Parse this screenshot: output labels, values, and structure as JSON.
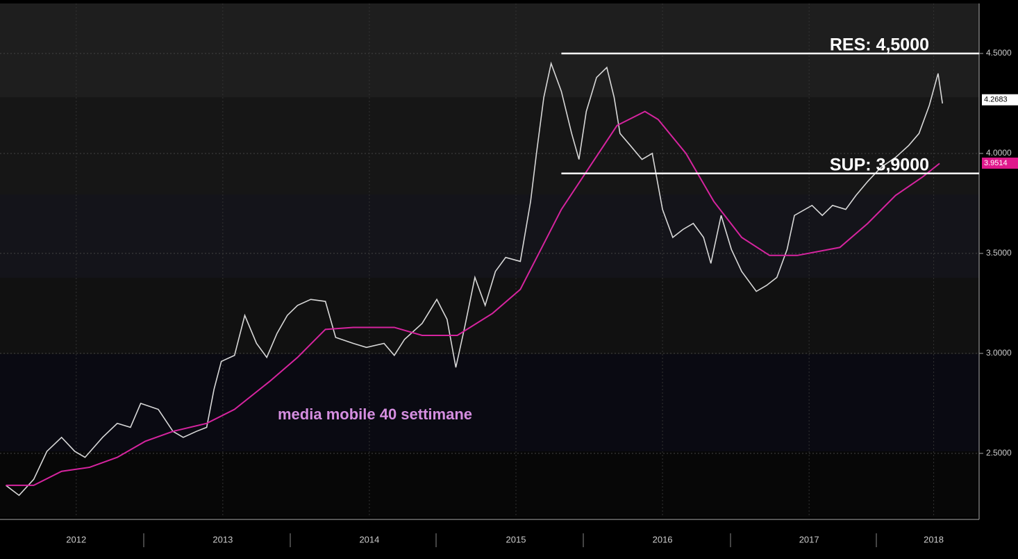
{
  "chart_data": {
    "type": "line",
    "xlim": [
      2011.98,
      2018.66
    ],
    "ylim": [
      2.18,
      4.75
    ],
    "yticks": [
      {
        "value": 2.5,
        "label": "2.5000"
      },
      {
        "value": 3.0,
        "label": "3.0000"
      },
      {
        "value": 3.5,
        "label": "3.5000"
      },
      {
        "value": 4.0,
        "label": "4.0000"
      },
      {
        "value": 4.5,
        "label": "4.5000"
      }
    ],
    "xticks": [
      {
        "value": 2012.5,
        "label": "2012"
      },
      {
        "value": 2013.5,
        "label": "2013"
      },
      {
        "value": 2014.5,
        "label": "2014"
      },
      {
        "value": 2015.5,
        "label": "2015"
      },
      {
        "value": 2016.5,
        "label": "2016"
      },
      {
        "value": 2017.5,
        "label": "2017"
      },
      {
        "value": 2018.35,
        "label": "2018"
      }
    ],
    "grid": true,
    "series": [
      {
        "color": "#d8d8d8",
        "x": [
          2012.02,
          2012.11,
          2012.21,
          2012.3,
          2012.4,
          2012.49,
          2012.56,
          2012.68,
          2012.78,
          2012.87,
          2012.94,
          2013.06,
          2013.16,
          2013.23,
          2013.32,
          2013.39,
          2013.44,
          2013.49,
          2013.58,
          2013.65,
          2013.73,
          2013.8,
          2013.87,
          2013.94,
          2014.01,
          2014.1,
          2014.2,
          2014.27,
          2014.39,
          2014.48,
          2014.6,
          2014.67,
          2014.74,
          2014.86,
          2014.96,
          2015.03,
          2015.09,
          2015.15,
          2015.22,
          2015.29,
          2015.36,
          2015.43,
          2015.53,
          2015.6,
          2015.64,
          2015.69,
          2015.74,
          2015.81,
          2015.88,
          2015.93,
          2015.98,
          2016.05,
          2016.12,
          2016.17,
          2016.21,
          2016.28,
          2016.36,
          2016.43,
          2016.5,
          2016.57,
          2016.64,
          2016.71,
          2016.78,
          2016.83,
          2016.9,
          2016.97,
          2017.04,
          2017.14,
          2017.21,
          2017.28,
          2017.35,
          2017.4,
          2017.52,
          2017.59,
          2017.66,
          2017.75,
          2017.82,
          2017.9,
          2017.99,
          2018.09,
          2018.18,
          2018.25,
          2018.32,
          2018.38,
          2018.41
        ],
        "values": [
          2.34,
          2.29,
          2.37,
          2.51,
          2.58,
          2.51,
          2.48,
          2.58,
          2.65,
          2.63,
          2.75,
          2.72,
          2.61,
          2.58,
          2.61,
          2.63,
          2.82,
          2.96,
          2.99,
          3.19,
          3.05,
          2.98,
          3.1,
          3.19,
          3.24,
          3.27,
          3.26,
          3.08,
          3.05,
          3.03,
          3.05,
          2.99,
          3.07,
          3.15,
          3.27,
          3.17,
          2.93,
          3.13,
          3.38,
          3.24,
          3.41,
          3.48,
          3.46,
          3.76,
          4.0,
          4.28,
          4.45,
          4.31,
          4.1,
          3.97,
          4.21,
          4.38,
          4.43,
          4.28,
          4.1,
          4.04,
          3.97,
          4.0,
          3.72,
          3.58,
          3.62,
          3.65,
          3.58,
          3.45,
          3.69,
          3.52,
          3.41,
          3.31,
          3.34,
          3.38,
          3.52,
          3.69,
          3.74,
          3.69,
          3.74,
          3.72,
          3.79,
          3.86,
          3.93,
          3.98,
          4.04,
          4.1,
          4.24,
          4.4,
          4.25
        ]
      },
      {
        "color": "#d6249f",
        "x": [
          2012.02,
          2012.21,
          2012.4,
          2012.59,
          2012.78,
          2012.97,
          2013.16,
          2013.39,
          2013.58,
          2013.82,
          2014.01,
          2014.2,
          2014.39,
          2014.67,
          2014.86,
          2015.1,
          2015.34,
          2015.53,
          2015.67,
          2015.81,
          2016.0,
          2016.19,
          2016.38,
          2016.47,
          2016.66,
          2016.85,
          2017.04,
          2017.23,
          2017.42,
          2017.71,
          2017.9,
          2018.09,
          2018.27,
          2018.39
        ],
        "values": [
          2.34,
          2.34,
          2.41,
          2.43,
          2.48,
          2.56,
          2.61,
          2.65,
          2.72,
          2.86,
          2.98,
          3.12,
          3.13,
          3.13,
          3.09,
          3.09,
          3.2,
          3.32,
          3.52,
          3.72,
          3.93,
          4.14,
          4.21,
          4.17,
          4.0,
          3.76,
          3.58,
          3.49,
          3.49,
          3.53,
          3.65,
          3.79,
          3.88,
          3.95
        ]
      }
    ],
    "levels": [
      {
        "label": "RES: 4,5000",
        "value": 4.5,
        "start": 2015.81
      },
      {
        "label": "SUP: 3,9000",
        "value": 3.9,
        "start": 2015.81
      }
    ],
    "annotation": "media mobile 40 settimane",
    "last_values": [
      {
        "value": 4.2683,
        "color": "#ffffff"
      },
      {
        "value": 3.9514,
        "color": "#e0188c"
      }
    ]
  }
}
